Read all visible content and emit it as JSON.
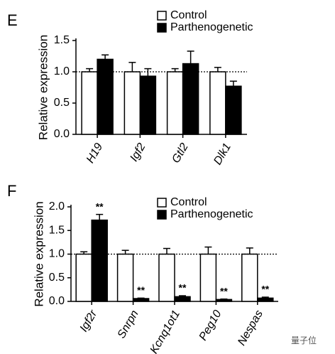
{
  "chart_data": [
    {
      "type": "bar",
      "panel": "E",
      "ylabel": "Relative expression",
      "categories": [
        "H19",
        "Igf2",
        "Gtl2",
        "Dlk1"
      ],
      "series": [
        {
          "name": "Control",
          "color": "#ffffff",
          "values": [
            1.0,
            1.0,
            1.0,
            1.0
          ],
          "errors": [
            0.05,
            0.15,
            0.05,
            0.07
          ]
        },
        {
          "name": "Parthenogenetic",
          "color": "#000000",
          "values": [
            1.2,
            0.93,
            1.13,
            0.77
          ],
          "errors": [
            0.07,
            0.12,
            0.2,
            0.08
          ]
        }
      ],
      "ylim": [
        0,
        1.5
      ],
      "yticks": [
        {
          "value": 0,
          "label": "0.0"
        },
        0.5,
        {
          "value": 1,
          "label": "1.0"
        },
        1.5
      ],
      "reference_line": 1
    },
    {
      "type": "bar",
      "panel": "F",
      "ylabel": "Relative expression",
      "categories": [
        "Igf2r",
        "Snrpn",
        "Kcnq1ot1",
        "Peg10",
        "Nespas"
      ],
      "series": [
        {
          "name": "Control",
          "color": "#ffffff",
          "values": [
            1.0,
            1.0,
            1.0,
            1.0,
            1.0
          ],
          "errors": [
            0.05,
            0.08,
            0.12,
            0.15,
            0.13
          ]
        },
        {
          "name": "Parthenogenetic",
          "color": "#000000",
          "values": [
            1.72,
            0.06,
            0.1,
            0.04,
            0.07
          ],
          "errors": [
            0.12,
            0.01,
            0.02,
            0.01,
            0.02
          ]
        }
      ],
      "annotations": [
        "**",
        "**",
        "**",
        "**",
        "**"
      ],
      "ylim": [
        0,
        2
      ],
      "yticks": [
        {
          "value": 0,
          "label": "0.0"
        },
        0.5,
        {
          "value": 1,
          "label": "1.0"
        },
        1.5,
        {
          "value": 2,
          "label": "2.0"
        }
      ],
      "reference_line": 1
    }
  ],
  "watermark": "量子位"
}
